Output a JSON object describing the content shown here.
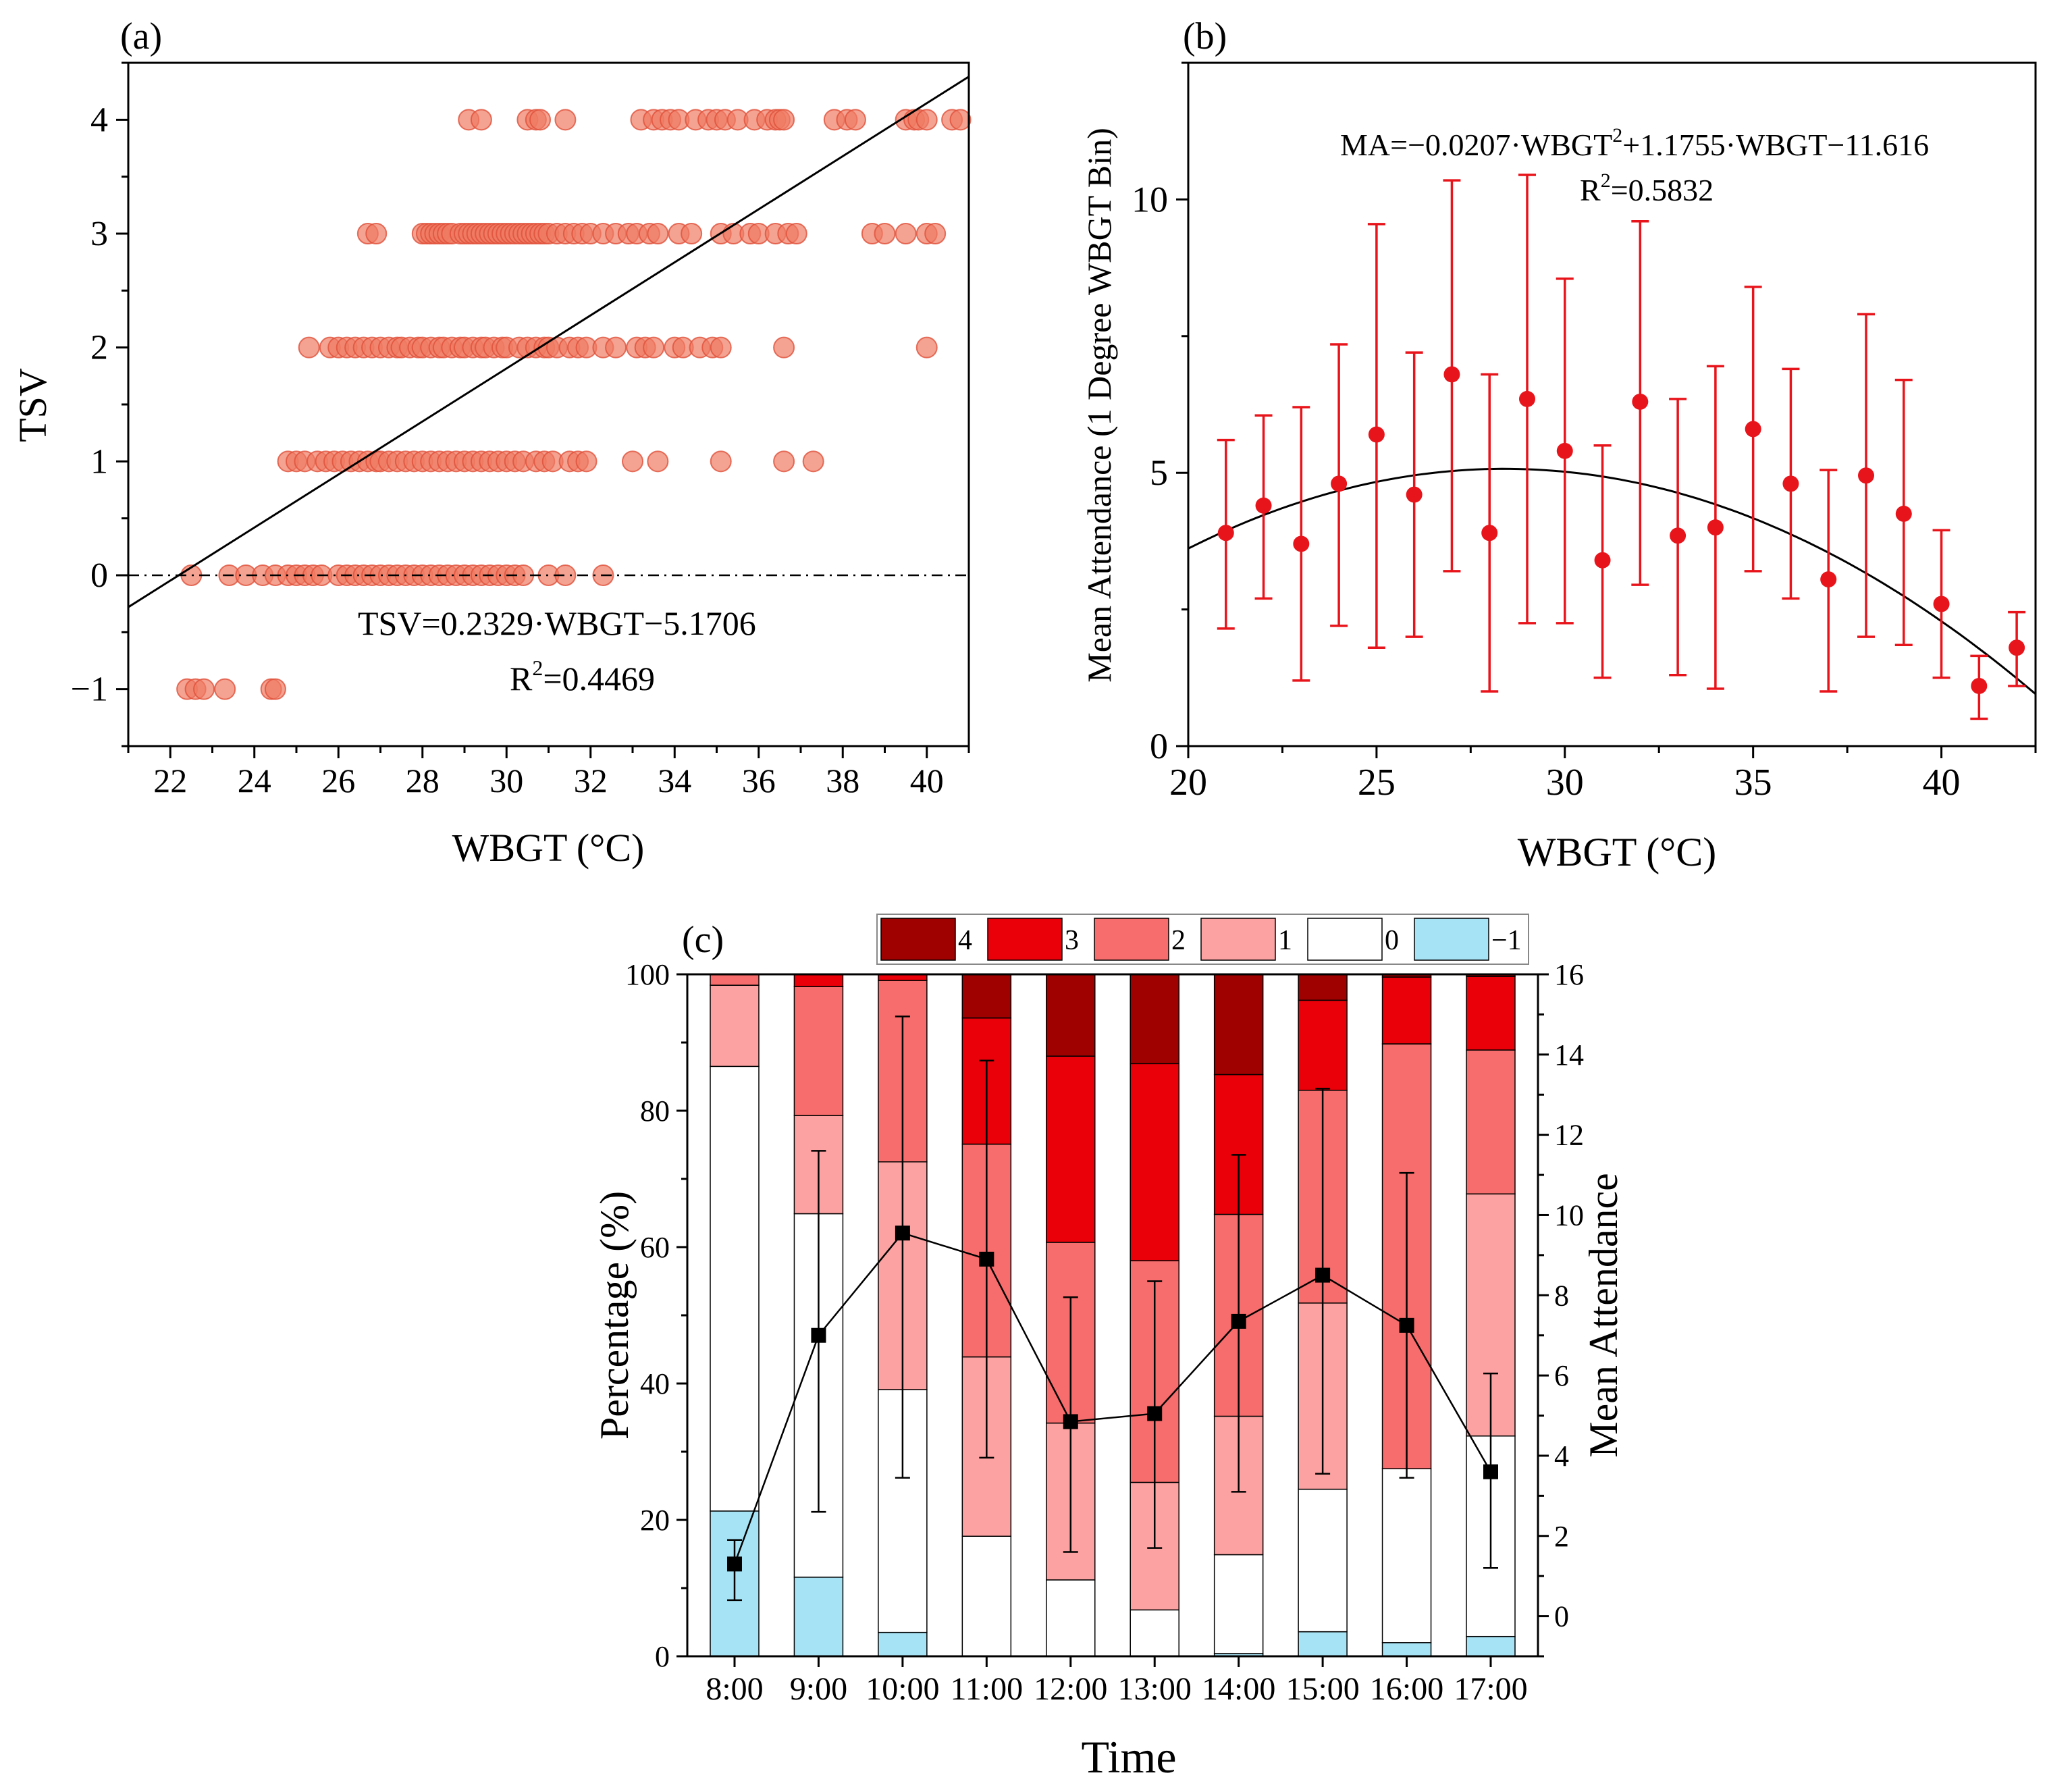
{
  "panels": {
    "a": {
      "label": "(a)"
    },
    "b": {
      "label": "(b)"
    },
    "c": {
      "label": "(c)"
    }
  },
  "chart_data": [
    {
      "id": "a",
      "type": "scatter",
      "xlabel": "WBGT (°C)",
      "ylabel": "TSV",
      "xlim": [
        21,
        41
      ],
      "ylim": [
        -1.5,
        4.5
      ],
      "xticks": [
        "22",
        "24",
        "26",
        "28",
        "30",
        "32",
        "34",
        "36",
        "38",
        "40"
      ],
      "yticks": [
        "−1",
        "0",
        "1",
        "2",
        "3",
        "4"
      ],
      "point_color": "#f07a63",
      "line_color": "#000000",
      "fit": {
        "slope": 0.2329,
        "intercept": -5.1706
      },
      "equation": "TSV=0.2329·WBGT−5.1706",
      "r2_prefix": "R",
      "r2_sup": "2",
      "r2_value": "=0.4469",
      "reference_line_y": 0,
      "series": [
        {
          "tsv": 4,
          "x": [
            29.1,
            29.4,
            30.5,
            30.7,
            30.8,
            31.4,
            33.2,
            33.5,
            33.7,
            33.9,
            34.1,
            34.5,
            34.8,
            35.0,
            35.2,
            35.5,
            35.9,
            36.2,
            36.4,
            36.5,
            36.6,
            37.8,
            38.1,
            38.3,
            39.5,
            39.7,
            39.8,
            40.0,
            40.6,
            40.8
          ]
        },
        {
          "tsv": 3,
          "x": [
            26.7,
            26.9,
            28.0,
            28.1,
            28.2,
            28.3,
            28.4,
            28.5,
            28.6,
            28.7,
            28.9,
            29.0,
            29.1,
            29.2,
            29.3,
            29.4,
            29.5,
            29.6,
            29.7,
            29.8,
            29.9,
            30.0,
            30.1,
            30.2,
            30.3,
            30.4,
            30.5,
            30.6,
            30.7,
            30.8,
            30.9,
            31.0,
            31.2,
            31.4,
            31.6,
            31.8,
            32.0,
            32.3,
            32.6,
            32.9,
            33.1,
            33.4,
            33.6,
            34.1,
            34.4,
            35.1,
            35.4,
            35.8,
            36.0,
            36.4,
            36.7,
            36.9,
            38.7,
            39.0,
            39.5,
            40.0,
            40.2
          ]
        },
        {
          "tsv": 2,
          "x": [
            25.3,
            25.8,
            26.0,
            26.2,
            26.4,
            26.6,
            26.8,
            27.0,
            27.2,
            27.4,
            27.5,
            27.7,
            27.9,
            28.0,
            28.2,
            28.4,
            28.5,
            28.7,
            28.9,
            29.0,
            29.2,
            29.4,
            29.5,
            29.7,
            29.9,
            30.0,
            30.3,
            30.5,
            30.7,
            30.9,
            31.0,
            31.2,
            31.5,
            31.7,
            31.9,
            32.3,
            32.6,
            33.1,
            33.3,
            33.5,
            34.0,
            34.2,
            34.6,
            34.9,
            35.1,
            36.6,
            40.0
          ]
        },
        {
          "tsv": 1,
          "x": [
            24.8,
            25.0,
            25.2,
            25.5,
            25.7,
            25.9,
            26.1,
            26.3,
            26.5,
            26.7,
            26.9,
            27.0,
            27.2,
            27.4,
            27.6,
            27.8,
            28.0,
            28.2,
            28.4,
            28.6,
            28.8,
            29.0,
            29.2,
            29.4,
            29.6,
            29.8,
            30.0,
            30.2,
            30.4,
            30.7,
            30.9,
            31.1,
            31.5,
            31.7,
            31.9,
            33.0,
            33.6,
            35.1,
            36.6,
            37.3
          ]
        },
        {
          "tsv": 0,
          "x": [
            22.5,
            23.4,
            23.8,
            24.2,
            24.5,
            24.8,
            25.0,
            25.2,
            25.4,
            25.6,
            26.0,
            26.2,
            26.4,
            26.6,
            26.8,
            27.0,
            27.2,
            27.4,
            27.6,
            27.8,
            28.0,
            28.2,
            28.4,
            28.6,
            28.8,
            29.0,
            29.2,
            29.4,
            29.6,
            29.8,
            30.0,
            30.2,
            30.4,
            31.0,
            31.4,
            32.3
          ]
        },
        {
          "tsv": -1,
          "x": [
            22.4,
            22.6,
            22.8,
            23.3,
            24.4,
            24.5
          ]
        }
      ]
    },
    {
      "id": "b",
      "type": "scatter",
      "xlabel": "WBGT (°C)",
      "ylabel": "Mean Attendance (1 Degree WBGT Bin)",
      "xlim": [
        20,
        42.5
      ],
      "ylim": [
        0,
        12.5
      ],
      "xticks": [
        "20",
        "25",
        "30",
        "35",
        "40"
      ],
      "yticks": [
        "0",
        "5",
        "10"
      ],
      "point_color": "#e8141b",
      "curve_color": "#000000",
      "fit": {
        "a": -0.0207,
        "b": 1.1755,
        "c": -11.616
      },
      "equation_parts": [
        "MA=−0.0207·WBGT",
        "2",
        "+1.1755·WBGT−11.616"
      ],
      "r2_prefix": "R",
      "r2_sup": "2",
      "r2_value": "=0.5832",
      "x": [
        21,
        22,
        23,
        24,
        25,
        26,
        27,
        28,
        29,
        30,
        31,
        32,
        33,
        34,
        35,
        36,
        37,
        38,
        39,
        40,
        41,
        42
      ],
      "mean": [
        3.9,
        4.4,
        3.7,
        4.8,
        5.7,
        4.6,
        6.8,
        3.9,
        6.35,
        5.4,
        3.4,
        6.3,
        3.85,
        4.0,
        5.8,
        4.8,
        3.05,
        4.95,
        4.25,
        2.6,
        1.1,
        1.8
      ],
      "upper": [
        5.6,
        6.05,
        6.2,
        7.35,
        9.55,
        7.2,
        10.35,
        6.8,
        10.45,
        8.55,
        5.5,
        9.6,
        6.35,
        6.95,
        8.4,
        6.9,
        5.05,
        7.9,
        6.7,
        3.95,
        1.65,
        2.45
      ],
      "lower": [
        2.15,
        2.7,
        1.2,
        2.2,
        1.8,
        2.0,
        3.2,
        1.0,
        2.25,
        2.25,
        1.25,
        2.95,
        1.3,
        1.05,
        3.2,
        2.7,
        1.0,
        2.0,
        1.85,
        1.25,
        0.5,
        1.1
      ]
    },
    {
      "id": "c",
      "type": "bar",
      "stacked": true,
      "xlabel": "Time",
      "ylabel": "Percentage (%)",
      "y2label": "Mean Attendance",
      "categories": [
        "8:00",
        "9:00",
        "10:00",
        "11:00",
        "12:00",
        "13:00",
        "14:00",
        "15:00",
        "16:00",
        "17:00"
      ],
      "ylim": [
        0,
        100
      ],
      "y2lim": [
        -1,
        16
      ],
      "yticks": [
        "0",
        "20",
        "40",
        "60",
        "80",
        "100"
      ],
      "y2ticks": [
        "0",
        "2",
        "4",
        "6",
        "8",
        "10",
        "12",
        "14",
        "16"
      ],
      "series": [
        {
          "name": "−1",
          "color": "#a6e3f5",
          "values": [
            21.3,
            11.6,
            3.5,
            0,
            0,
            0,
            0.4,
            3.6,
            2.0,
            2.9
          ]
        },
        {
          "name": "0",
          "color": "#ffffff",
          "values": [
            65.2,
            53.3,
            35.6,
            17.6,
            11.2,
            6.8,
            14.5,
            20.9,
            25.5,
            29.4
          ]
        },
        {
          "name": "1",
          "color": "#fca2a2",
          "values": [
            11.9,
            14.4,
            33.4,
            26.3,
            23.0,
            18.7,
            20.3,
            27.3,
            0,
            35.5
          ]
        },
        {
          "name": "2",
          "color": "#f76c6c",
          "values": [
            1.6,
            18.9,
            26.6,
            31.2,
            26.5,
            32.5,
            29.6,
            31.2,
            62.3,
            21.1
          ]
        },
        {
          "name": "3",
          "color": "#e90008",
          "values": [
            0,
            1.8,
            0.9,
            18.5,
            27.3,
            28.9,
            20.5,
            13.2,
            9.8,
            10.8
          ]
        },
        {
          "name": "4",
          "color": "#9f0000",
          "values": [
            0,
            0,
            0,
            6.4,
            12.0,
            13.1,
            14.7,
            3.8,
            0.4,
            0.3
          ]
        }
      ],
      "legend_order": [
        "4",
        "3",
        "2",
        "1",
        "0",
        "−1"
      ],
      "legend_position": "top",
      "attendance": {
        "color": "#000000",
        "mean": [
          1.3,
          7.0,
          9.55,
          8.9,
          4.85,
          5.05,
          7.35,
          8.5,
          7.25,
          3.6
        ],
        "upper": [
          1.9,
          11.6,
          14.95,
          13.85,
          7.95,
          8.35,
          11.5,
          13.15,
          11.05,
          6.05
        ],
        "lower": [
          0.4,
          2.6,
          3.45,
          3.95,
          1.6,
          1.7,
          3.1,
          3.55,
          3.45,
          1.2
        ]
      }
    }
  ]
}
